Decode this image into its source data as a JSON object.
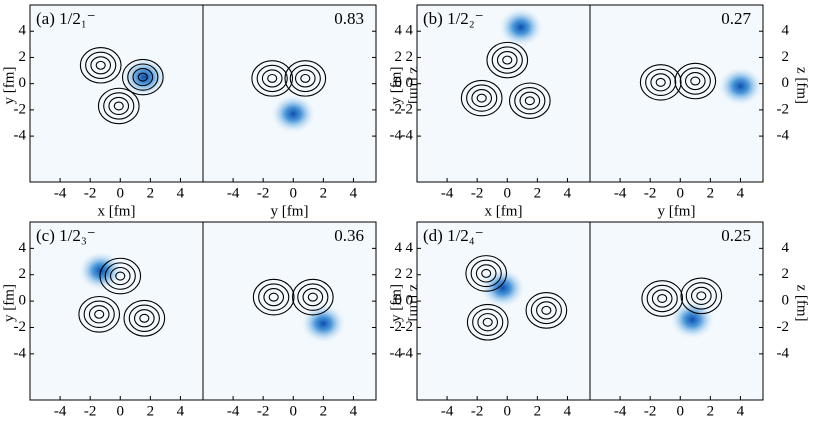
{
  "chart_data": [
    {
      "type": "density",
      "annotation": "(a) 1/2₁⁻",
      "xlabel": "x [fm]",
      "ylabel": "y [fm]",
      "xlim": [
        -6,
        5.5
      ],
      "ylim": [
        -7.5,
        6
      ],
      "xticks": [
        -4,
        -2,
        0,
        2,
        4
      ],
      "yticks": [
        -4,
        -2,
        0,
        2,
        4
      ],
      "centers": {
        "x": [
          -1.3,
          1.5,
          -0.1
        ],
        "y": [
          1.4,
          0.5,
          -1.7
        ]
      },
      "peak": {
        "x": [
          1.6
        ],
        "y": [
          0.5
        ]
      }
    },
    {
      "type": "density",
      "annotation": "0.83",
      "xlabel": "y [fm]",
      "ylabel": "z [fm]",
      "xlim": [
        -6,
        5.5
      ],
      "ylim": [
        -7.5,
        6
      ],
      "xticks": [
        -4,
        -2,
        0,
        2,
        4
      ],
      "yticks": [
        -4,
        -2,
        0,
        2,
        4
      ],
      "centers": {
        "x": [
          -1.4,
          0.8
        ],
        "y": [
          0.4,
          0.4
        ]
      },
      "peak": {
        "x": [
          0
        ],
        "y": [
          -2.3
        ]
      }
    },
    {
      "type": "density",
      "annotation": "(b) 1/2₂⁻",
      "xlabel": "x [fm]",
      "ylabel": "y [fm]",
      "xlim": [
        -6,
        5.5
      ],
      "ylim": [
        -7.5,
        6
      ],
      "xticks": [
        -4,
        -2,
        0,
        2,
        4
      ],
      "yticks": [
        -4,
        -2,
        0,
        2,
        4
      ],
      "centers": {
        "x": [
          0,
          -1.7,
          1.5
        ],
        "y": [
          1.8,
          -1.1,
          -1.3
        ]
      },
      "peak": {
        "x": [
          0.9
        ],
        "y": [
          4.3
        ]
      }
    },
    {
      "type": "density",
      "annotation": "0.27",
      "xlabel": "y [fm]",
      "ylabel": "z [fm]",
      "xlim": [
        -6,
        5.5
      ],
      "ylim": [
        -7.5,
        6
      ],
      "xticks": [
        -4,
        -2,
        0,
        2,
        4
      ],
      "yticks": [
        -4,
        -2,
        0,
        2,
        4
      ],
      "centers": {
        "x": [
          -1.3,
          1.0
        ],
        "y": [
          0.1,
          0.2
        ]
      },
      "peak": {
        "x": [
          4
        ],
        "y": [
          -0.2
        ]
      }
    },
    {
      "type": "density",
      "annotation": "(c) 1/2₃⁻",
      "xlabel": "x [fm]",
      "ylabel": "y [fm]",
      "xlim": [
        -6,
        5.5
      ],
      "ylim": [
        -7.5,
        6
      ],
      "xticks": [
        -4,
        -2,
        0,
        2,
        4
      ],
      "yticks": [
        -4,
        -2,
        0,
        2,
        4
      ],
      "centers": {
        "x": [
          0,
          -1.4,
          1.6
        ],
        "y": [
          1.9,
          -1.0,
          -1.3
        ]
      },
      "peak": {
        "x": [
          -1.3
        ],
        "y": [
          2.3
        ]
      }
    },
    {
      "type": "density",
      "annotation": "0.36",
      "xlabel": "y [fm]",
      "ylabel": "z [fm]",
      "xlim": [
        -6,
        5.5
      ],
      "ylim": [
        -7.5,
        6
      ],
      "xticks": [
        -4,
        -2,
        0,
        2,
        4
      ],
      "yticks": [
        -4,
        -2,
        0,
        2,
        4
      ],
      "centers": {
        "x": [
          -1.3,
          1.3
        ],
        "y": [
          0.3,
          0.3
        ]
      },
      "peak": {
        "x": [
          2
        ],
        "y": [
          -1.7
        ]
      }
    },
    {
      "type": "density",
      "annotation": "(d) 1/2₄⁻",
      "xlabel": "x [fm]",
      "ylabel": "y [fm]",
      "xlim": [
        -6,
        5.5
      ],
      "ylim": [
        -7.5,
        6
      ],
      "xticks": [
        -4,
        -2,
        0,
        2,
        4
      ],
      "yticks": [
        -4,
        -2,
        0,
        2,
        4
      ],
      "centers": {
        "x": [
          -1.4,
          2.6,
          -1.3
        ],
        "y": [
          2.1,
          -0.7,
          -1.6
        ]
      },
      "peak": {
        "x": [
          -0.3
        ],
        "y": [
          1.0
        ]
      }
    },
    {
      "type": "density",
      "annotation": "0.25",
      "xlabel": "y [fm]",
      "ylabel": "z [fm]",
      "xlim": [
        -6,
        5.5
      ],
      "ylim": [
        -7.5,
        6
      ],
      "xticks": [
        -4,
        -2,
        0,
        2,
        4
      ],
      "yticks": [
        -4,
        -2,
        0,
        2,
        4
      ],
      "centers": {
        "x": [
          -1.2,
          1.4
        ],
        "y": [
          0.2,
          0.4
        ]
      },
      "peak": {
        "x": [
          0.8
        ],
        "y": [
          -1.4
        ]
      }
    }
  ]
}
